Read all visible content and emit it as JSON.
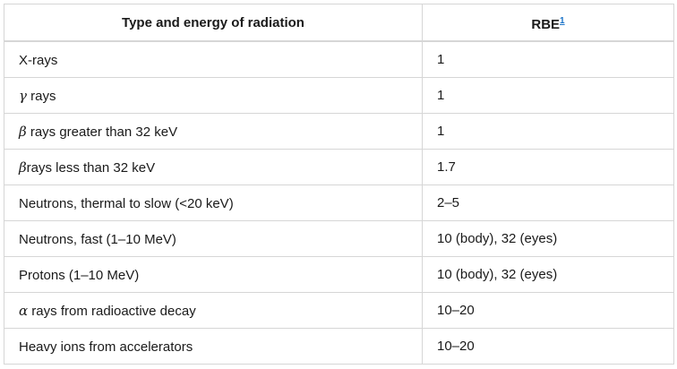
{
  "table": {
    "headers": {
      "type": "Type and energy of radiation",
      "rbe": "RBE",
      "rbe_footnote": "1"
    },
    "rows": [
      {
        "symbol": "",
        "type": "X-rays",
        "rbe": "1"
      },
      {
        "symbol": "γ",
        "type": " rays",
        "rbe": "1"
      },
      {
        "symbol": "β",
        "type": " rays greater than 32 keV",
        "rbe": "1"
      },
      {
        "symbol": "β",
        "type": "rays less than 32 keV",
        "rbe": "1.7"
      },
      {
        "symbol": "",
        "type": "Neutrons, thermal to slow (<20 keV)",
        "rbe": "2–5"
      },
      {
        "symbol": "",
        "type": "Neutrons, fast (1–10 MeV)",
        "rbe": "10 (body), 32 (eyes)"
      },
      {
        "symbol": "",
        "type": "Protons (1–10 MeV)",
        "rbe": "10 (body), 32 (eyes)"
      },
      {
        "symbol": "α",
        "type": " rays from radioactive decay",
        "rbe": "10–20"
      },
      {
        "symbol": "",
        "type": "Heavy ions from accelerators",
        "rbe": "10–20"
      }
    ]
  }
}
